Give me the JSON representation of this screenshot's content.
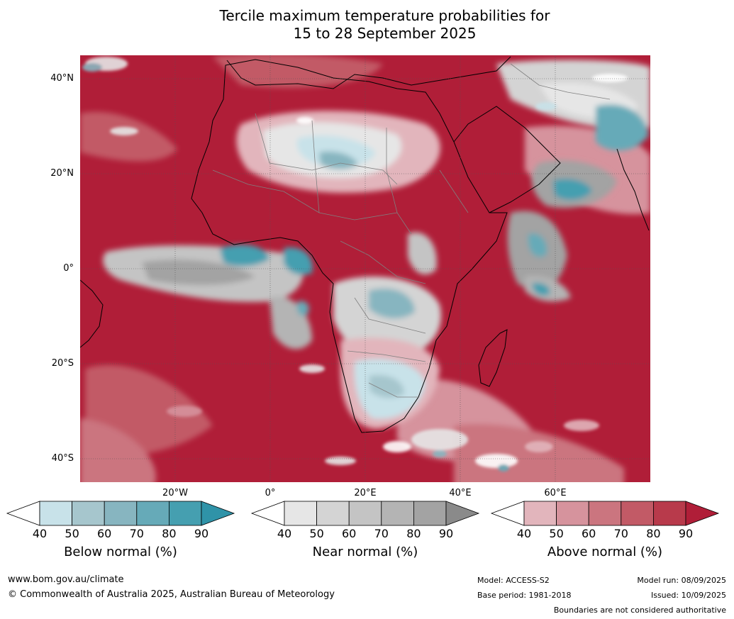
{
  "title_line1": "Tercile maximum temperature probabilities for",
  "title_line2": "15 to 28 September 2025",
  "map": {
    "lat_labels": [
      "40°N",
      "20°N",
      "0°",
      "20°S",
      "40°S"
    ],
    "lon_labels": [
      "20°W",
      "0°",
      "20°E",
      "40°E",
      "60°E"
    ],
    "region": "Africa"
  },
  "colorbars": [
    {
      "name": "below",
      "title": "Below normal (%)",
      "ticks": [
        "40",
        "50",
        "60",
        "70",
        "80",
        "90"
      ],
      "colors": [
        "#ffffff",
        "#c8e2e9",
        "#a6c6cd",
        "#87b5c0",
        "#66aab8",
        "#459fb0",
        "#2f93a8"
      ]
    },
    {
      "name": "near",
      "title": "Near normal (%)",
      "ticks": [
        "40",
        "50",
        "60",
        "70",
        "80",
        "90"
      ],
      "colors": [
        "#ffffff",
        "#e6e6e6",
        "#d4d4d4",
        "#c4c4c4",
        "#b4b4b4",
        "#a3a3a3",
        "#8a8a8a"
      ]
    },
    {
      "name": "above",
      "title": "Above normal (%)",
      "ticks": [
        "40",
        "50",
        "60",
        "70",
        "80",
        "90"
      ],
      "colors": [
        "#ffffff",
        "#e2b5bc",
        "#d6939d",
        "#cb757f",
        "#c25a66",
        "#b83a4b",
        "#b01e38"
      ]
    }
  ],
  "footer": {
    "url": "www.bom.gov.au/climate",
    "copyright": "© Commonwealth of Australia 2025, Australian Bureau of Meteorology",
    "model": "Model: ACCESS-S2",
    "base_period": "Base period: 1981-2018",
    "model_run": "Model run: 08/09/2025",
    "issued": "Issued: 10/09/2025",
    "disclaimer": "Boundaries are not considered authoritative"
  }
}
